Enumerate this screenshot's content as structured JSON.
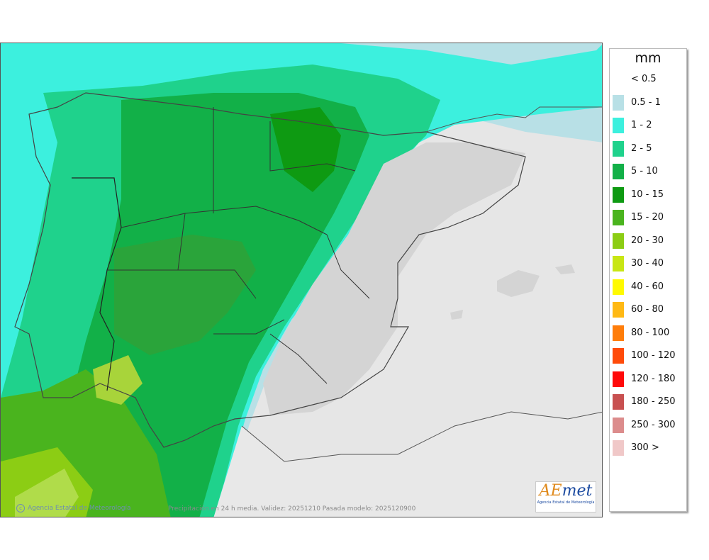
{
  "map": {
    "caption": "Precipitación en 24 h media. Validez: 20251210 Pasada modelo: 2025120900",
    "agency_credit": "Agencia Estatal de Meteorología",
    "logo": {
      "word_a": "AE",
      "word_b": "met",
      "subtitle": "Agencia Estatal de Meteorología"
    }
  },
  "legend": {
    "unit": "mm",
    "items": [
      {
        "label": "< 0.5",
        "color": "#ffffff"
      },
      {
        "label": "0.5 - 1",
        "color": "#b8e0e6"
      },
      {
        "label": "1 - 2",
        "color": "#3cf0de"
      },
      {
        "label": "2 - 5",
        "color": "#1fd28c"
      },
      {
        "label": "5 - 10",
        "color": "#12b048"
      },
      {
        "label": "10 - 15",
        "color": "#0e9a12"
      },
      {
        "label": "15 - 20",
        "color": "#4ab41e"
      },
      {
        "label": "20 - 30",
        "color": "#8ccd14"
      },
      {
        "label": "30 - 40",
        "color": "#c8e614"
      },
      {
        "label": "40 - 60",
        "color": "#fffa00"
      },
      {
        "label": "60 - 80",
        "color": "#ffb914"
      },
      {
        "label": "80 - 100",
        "color": "#ff7d0a"
      },
      {
        "label": "100 - 120",
        "color": "#ff4b0a"
      },
      {
        "label": "120 - 180",
        "color": "#ff0a0a"
      },
      {
        "label": "180 - 250",
        "color": "#c85050"
      },
      {
        "label": "250 - 300",
        "color": "#dc8c8c"
      },
      {
        "label": "300 >",
        "color": "#f0c8c8"
      }
    ]
  }
}
